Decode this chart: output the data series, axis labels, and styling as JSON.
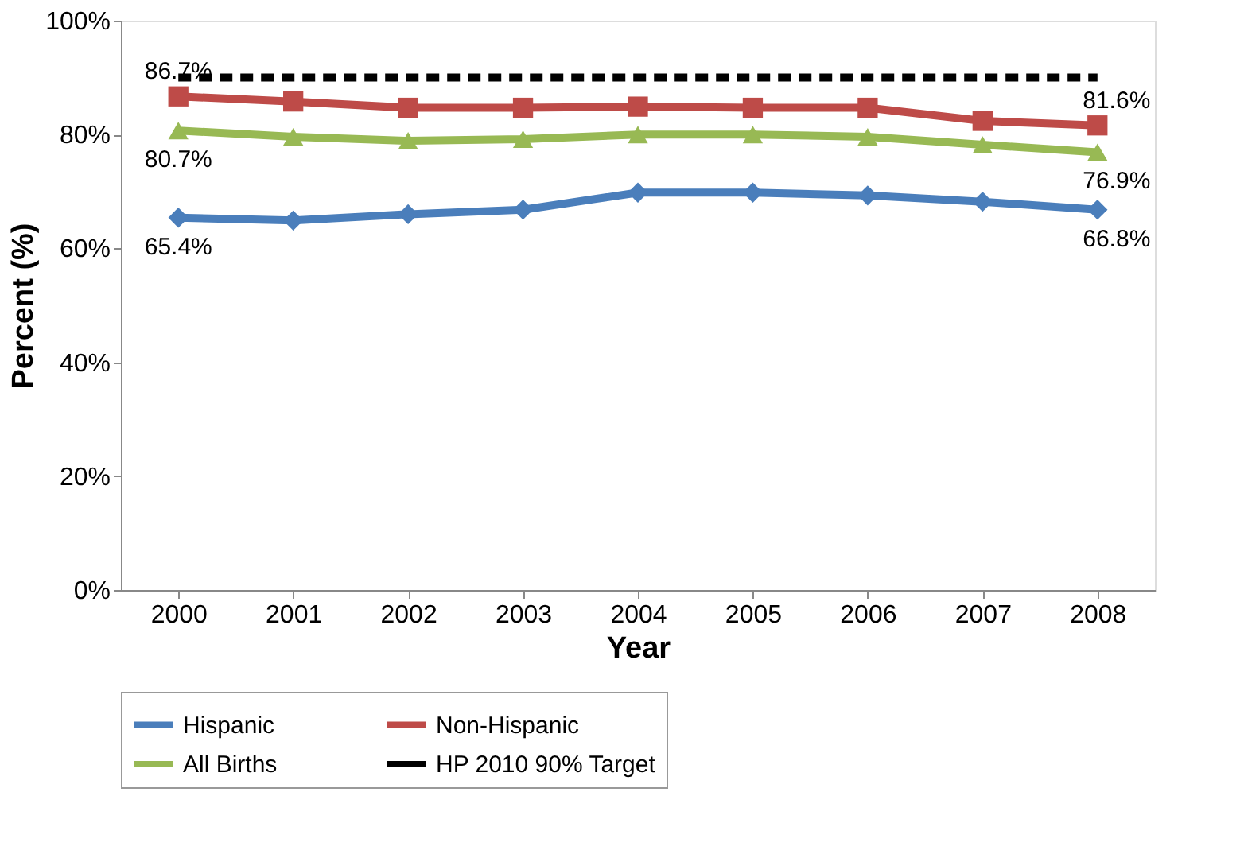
{
  "chart_data": {
    "type": "line",
    "xlabel": "Year",
    "ylabel": "Percent (%)",
    "categories": [
      "2000",
      "2001",
      "2002",
      "2003",
      "2004",
      "2005",
      "2006",
      "2007",
      "2008"
    ],
    "ylim": [
      0,
      100
    ],
    "yticks": [
      {
        "value": 0,
        "label": "0%"
      },
      {
        "value": 20,
        "label": "20%"
      },
      {
        "value": 40,
        "label": "40%"
      },
      {
        "value": 60,
        "label": "60%"
      },
      {
        "value": 80,
        "label": "80%"
      },
      {
        "value": 100,
        "label": "100%"
      }
    ],
    "grid": false,
    "legend": "bottom",
    "series": [
      {
        "name": "Hispanic",
        "color": "#4a7ebb",
        "marker": "diamond",
        "values": [
          65.4,
          64.9,
          66.0,
          66.8,
          69.8,
          69.8,
          69.3,
          68.2,
          66.8
        ],
        "value_labels": [
          "65.4%",
          null,
          null,
          null,
          null,
          null,
          null,
          null,
          "66.8%"
        ]
      },
      {
        "name": "Non-Hispanic",
        "color": "#be4b48",
        "marker": "square",
        "values": [
          86.7,
          85.8,
          84.7,
          84.7,
          84.9,
          84.7,
          84.7,
          82.4,
          81.6
        ],
        "value_labels": [
          "86.7%",
          null,
          null,
          null,
          null,
          null,
          null,
          null,
          "81.6%"
        ]
      },
      {
        "name": "All Births",
        "color": "#98b954",
        "marker": "triangle",
        "values": [
          80.7,
          79.6,
          78.9,
          79.2,
          80.0,
          80.0,
          79.6,
          78.2,
          76.9
        ],
        "value_labels": [
          "80.7%",
          null,
          null,
          null,
          null,
          null,
          null,
          null,
          "76.9%"
        ]
      },
      {
        "name": "HP 2010 90% Target",
        "color": "#000000",
        "marker": "none",
        "line_style": "dashed",
        "values": [
          90,
          90,
          90,
          90,
          90,
          90,
          90,
          90,
          90
        ]
      }
    ]
  }
}
